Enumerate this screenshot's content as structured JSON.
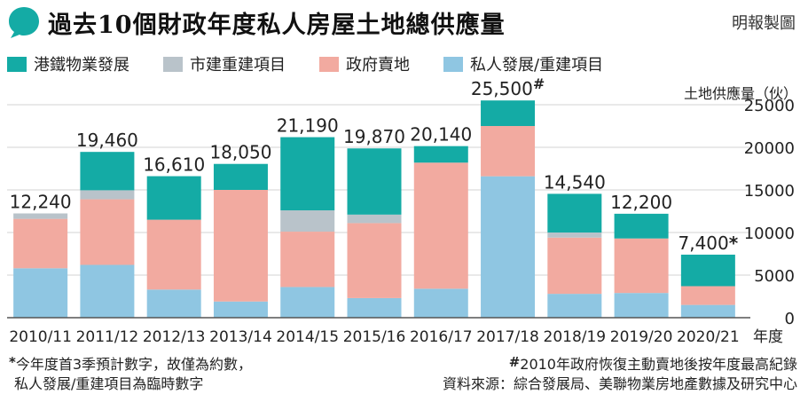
{
  "title": "過去10個財政年度私人房屋土地總供應量",
  "credit": "明報製圖",
  "colors": {
    "accent": "#14ABA5",
    "mtr": "#14ABA5",
    "urban": "#B9C3CA",
    "gov": "#F2AAA0",
    "private": "#8FC6E2",
    "grid": "#D3D3D3"
  },
  "chart_data": {
    "type": "bar",
    "stacked": true,
    "title": "過去10個財政年度私人房屋土地總供應量",
    "ylabel": "土地供應量（伙）",
    "xlabel": "年度",
    "ylim": [
      0,
      25000
    ],
    "yticks": [
      0,
      5000,
      10000,
      15000,
      20000,
      25000
    ],
    "grid": true,
    "legend_position": "top",
    "categories": [
      "2010/11",
      "2011/12",
      "2012/13",
      "2013/14",
      "2014/15",
      "2015/16",
      "2016/17",
      "2017/18",
      "2018/19",
      "2019/20",
      "2020/21"
    ],
    "series": [
      {
        "name": "私人發展/重建項目",
        "color": "#8FC6E2",
        "values": [
          5800,
          6200,
          3300,
          1900,
          3600,
          2300,
          3400,
          16600,
          2800,
          2900,
          1500
        ]
      },
      {
        "name": "政府賣地",
        "color": "#F2AAA0",
        "values": [
          5800,
          7700,
          8200,
          13100,
          6500,
          8800,
          14800,
          5900,
          6600,
          6400,
          2200
        ]
      },
      {
        "name": "市建重建項目",
        "color": "#B9C3CA",
        "values": [
          640,
          1060,
          0,
          0,
          2500,
          1000,
          0,
          0,
          600,
          0,
          0
        ]
      },
      {
        "name": "港鐵物業發展",
        "color": "#14ABA5",
        "values": [
          0,
          4500,
          5110,
          3050,
          8590,
          7770,
          1940,
          3000,
          4540,
          2900,
          3700
        ]
      }
    ],
    "totals": [
      12240,
      19460,
      16610,
      18050,
      21190,
      19870,
      20140,
      25500,
      14540,
      12200,
      7400
    ],
    "total_labels": [
      "12,240",
      "19,460",
      "16,610",
      "18,050",
      "21,190",
      "19,870",
      "20,140",
      "25,500",
      "14,540",
      "12,200",
      "7,400"
    ],
    "label_marks": [
      "",
      "",
      "",
      "",
      "",
      "",
      "",
      "#",
      "",
      "",
      "*"
    ]
  },
  "footnotes": {
    "left_line1": "今年度首3季預計數字，故僅為約數，",
    "left_line2": "私人發展/重建項目為臨時數字",
    "left_mark": "*",
    "right_line1": "2010年政府恢復主動賣地後按年度最高紀錄",
    "right_line2": "資料來源：綜合發展局、美聯物業房地產數據及研究中心",
    "right_mark": "#"
  }
}
